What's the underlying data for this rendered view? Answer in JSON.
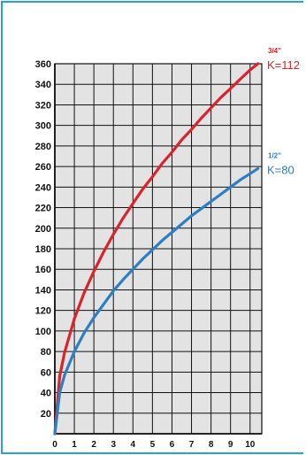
{
  "chart_data": {
    "type": "line",
    "title": "",
    "xlabel": "",
    "ylabel": "",
    "xlim": [
      0,
      10.6
    ],
    "ylim": [
      0,
      360
    ],
    "x_ticks": [
      "0",
      "1",
      "2",
      "3",
      "4",
      "5",
      "6",
      "7",
      "8",
      "9",
      "10"
    ],
    "y_ticks": [
      "20",
      "40",
      "60",
      "80",
      "100",
      "120",
      "140",
      "160",
      "180",
      "200",
      "220",
      "240",
      "260",
      "280",
      "300",
      "320",
      "340",
      "360"
    ],
    "grid": true,
    "background": "#e3e3e3",
    "series": [
      {
        "name": "K=112",
        "size_label": "3/4\"",
        "color": "#d9242c",
        "x": [
          0,
          0.25,
          0.5,
          1,
          1.5,
          2,
          2.5,
          3,
          3.5,
          4,
          4.5,
          5,
          5.5,
          6,
          6.5,
          7,
          7.5,
          8,
          8.5,
          9,
          9.5,
          10,
          10.4
        ],
        "values": [
          0,
          56,
          79,
          112,
          137,
          158,
          177,
          194,
          210,
          224,
          238,
          250,
          263,
          274,
          286,
          296,
          307,
          317,
          327,
          336,
          345,
          354,
          361
        ]
      },
      {
        "name": "K=80",
        "size_label": "1/2\"",
        "color": "#2f7ec4",
        "x": [
          0,
          0.25,
          0.5,
          1,
          1.5,
          2,
          2.5,
          3,
          3.5,
          4,
          4.5,
          5,
          5.5,
          6,
          6.5,
          7,
          7.5,
          8,
          8.5,
          9,
          9.5,
          10,
          10.4
        ],
        "values": [
          0,
          40,
          57,
          80,
          98,
          113,
          126,
          139,
          150,
          160,
          170,
          179,
          188,
          196,
          204,
          212,
          219,
          226,
          233,
          240,
          247,
          253,
          258
        ]
      }
    ]
  }
}
